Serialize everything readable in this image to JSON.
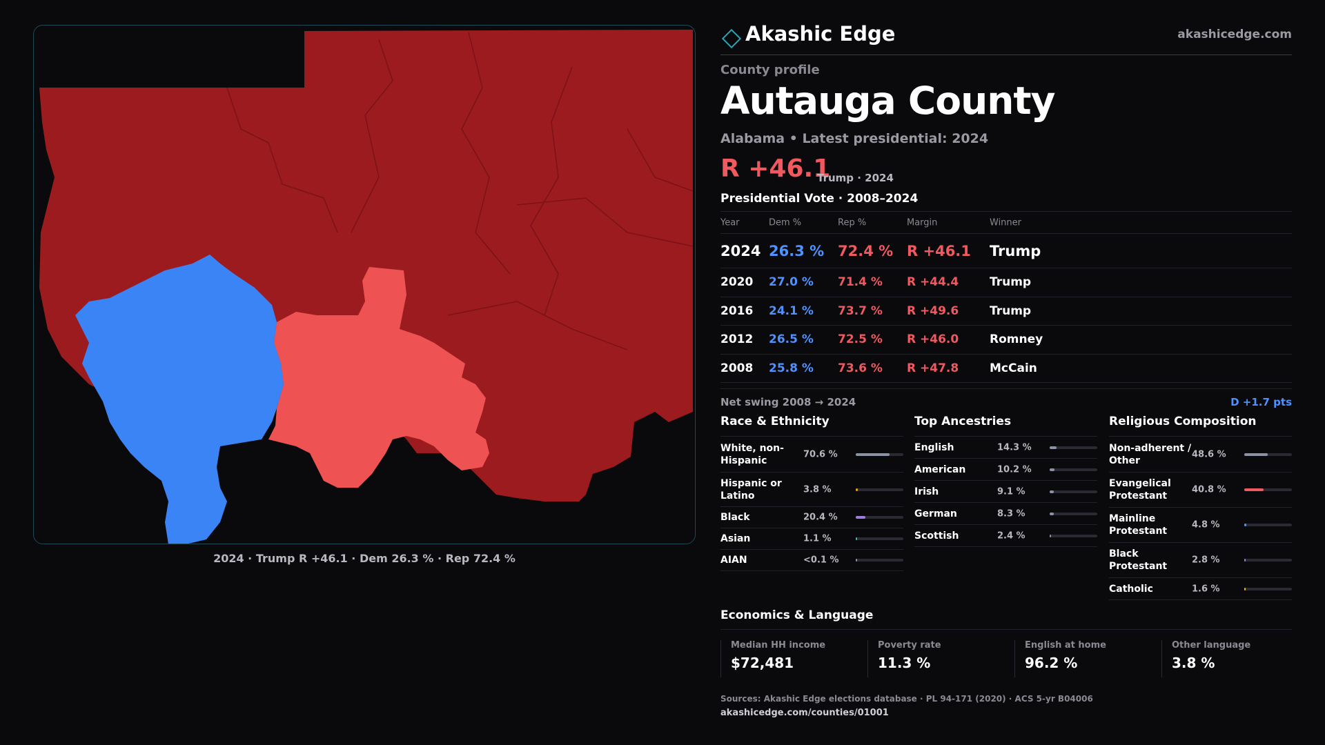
{
  "brand": {
    "name": "Akashic Edge",
    "url": "akashicedge.com"
  },
  "map": {
    "caption": "2024 · Trump R +46.1 · Dem 26.3 % · Rep 72.4 %",
    "colors": {
      "strong_rep": "#9b1b1f",
      "lean_rep": "#ee5253",
      "dem": "#3b84f5",
      "border": "#1f4a55"
    }
  },
  "profile": {
    "eyebrow": "County profile",
    "title": "Autauga County",
    "subtitle": "Alabama • Latest presidential: 2024",
    "margin": "R +46.1",
    "margin_note": "Trump · 2024"
  },
  "vote_table": {
    "title": "Presidential Vote · 2008–2024",
    "headers": [
      "Year",
      "Dem %",
      "Rep %",
      "Margin",
      "Winner"
    ],
    "rows": [
      {
        "year": "2024",
        "dem": "26.3 %",
        "rep": "72.4 %",
        "margin": "R +46.1",
        "winner": "Trump"
      },
      {
        "year": "2020",
        "dem": "27.0 %",
        "rep": "71.4 %",
        "margin": "R +44.4",
        "winner": "Trump"
      },
      {
        "year": "2016",
        "dem": "24.1 %",
        "rep": "73.7 %",
        "margin": "R +49.6",
        "winner": "Trump"
      },
      {
        "year": "2012",
        "dem": "26.5 %",
        "rep": "72.5 %",
        "margin": "R +46.0",
        "winner": "Romney"
      },
      {
        "year": "2008",
        "dem": "25.8 %",
        "rep": "73.6 %",
        "margin": "R +47.8",
        "winner": "McCain"
      }
    ]
  },
  "swing": {
    "label": "Net swing 2008 → 2024",
    "value": "D +1.7 pts"
  },
  "race": {
    "title": "Race & Ethnicity",
    "rows": [
      {
        "label": "White, non-Hispanic",
        "value": "70.6 %",
        "fraction": 0.706,
        "color": "#8a93a6"
      },
      {
        "label": "Hispanic or Latino",
        "value": "3.8 %",
        "fraction": 0.038,
        "color": "#e0a020"
      },
      {
        "label": "Black",
        "value": "20.4 %",
        "fraction": 0.204,
        "color": "#9b7ee0"
      },
      {
        "label": "Asian",
        "value": "1.1 %",
        "fraction": 0.011,
        "color": "#3fb9b0"
      },
      {
        "label": "AIAN",
        "value": "<0.1 %",
        "fraction": 0.001,
        "color": "#8a93a6"
      }
    ]
  },
  "ancestry": {
    "title": "Top Ancestries",
    "rows": [
      {
        "label": "English",
        "value": "14.3 %",
        "fraction": 0.143,
        "color": "#8a93a6"
      },
      {
        "label": "American",
        "value": "10.2 %",
        "fraction": 0.102,
        "color": "#8a93a6"
      },
      {
        "label": "Irish",
        "value": "9.1 %",
        "fraction": 0.091,
        "color": "#8a93a6"
      },
      {
        "label": "German",
        "value": "8.3 %",
        "fraction": 0.083,
        "color": "#8a93a6"
      },
      {
        "label": "Scottish",
        "value": "2.4 %",
        "fraction": 0.024,
        "color": "#8a93a6"
      }
    ]
  },
  "religion": {
    "title": "Religious Composition",
    "rows": [
      {
        "label": "Non-adherent / Other",
        "value": "48.6 %",
        "fraction": 0.486,
        "color": "#8a93a6"
      },
      {
        "label": "Evangelical Protestant",
        "value": "40.8 %",
        "fraction": 0.408,
        "color": "#f0595f"
      },
      {
        "label": "Mainline Protestant",
        "value": "4.8 %",
        "fraction": 0.048,
        "color": "#4f92ff"
      },
      {
        "label": "Black Protestant",
        "value": "2.8 %",
        "fraction": 0.028,
        "color": "#9b7ee0"
      },
      {
        "label": "Catholic",
        "value": "1.6 %",
        "fraction": 0.016,
        "color": "#e0c020"
      }
    ]
  },
  "economics": {
    "title": "Economics & Language",
    "cells": [
      {
        "label": "Median HH income",
        "value": "$72,481"
      },
      {
        "label": "Poverty rate",
        "value": "11.3 %"
      },
      {
        "label": "English at home",
        "value": "96.2 %"
      },
      {
        "label": "Other language",
        "value": "3.8 %"
      }
    ]
  },
  "footer": {
    "sources": "Sources: Akashic Edge elections database · PL 94-171 (2020) · ACS 5-yr B04006",
    "url": "akashicedge.com/counties/01001"
  }
}
